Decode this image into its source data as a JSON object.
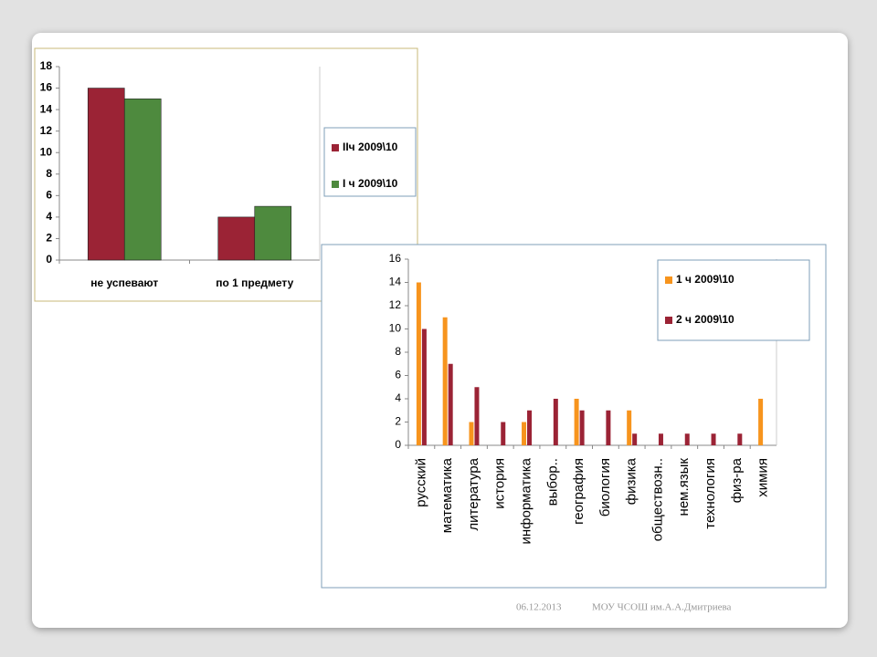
{
  "chart_data": [
    {
      "type": "bar",
      "categories": [
        "не успевают",
        "по 1 предмету"
      ],
      "series": [
        {
          "name": "IIч 2009\\10",
          "color": "#9b2335",
          "values": [
            16,
            4
          ]
        },
        {
          "name": "I ч 2009\\10",
          "color": "#4e8a3e",
          "values": [
            15,
            5
          ]
        }
      ],
      "ylim": [
        0,
        18
      ],
      "yticks": [
        0,
        2,
        4,
        6,
        8,
        10,
        12,
        14,
        16,
        18
      ],
      "grid": false,
      "legend": "right"
    },
    {
      "type": "bar",
      "categories": [
        "русский",
        "математика",
        "литература",
        "история",
        "информатика",
        "выбор..",
        "география",
        "биология",
        "физика",
        "обществозн..",
        "нем.язык",
        "технология",
        "физ-ра",
        "химия"
      ],
      "series": [
        {
          "name": "1 ч 2009\\10",
          "color": "#f7941d",
          "values": [
            14,
            11,
            2,
            0,
            2,
            0,
            4,
            0,
            3,
            0,
            0,
            0,
            0,
            4
          ]
        },
        {
          "name": "2 ч 2009\\10",
          "color": "#9b2335",
          "values": [
            10,
            7,
            5,
            2,
            3,
            4,
            3,
            3,
            1,
            1,
            1,
            1,
            1,
            0
          ]
        }
      ],
      "ylim": [
        0,
        16
      ],
      "yticks": [
        0,
        2,
        4,
        6,
        8,
        10,
        12,
        14,
        16
      ],
      "grid": false,
      "legend": "upper right",
      "rotated_labels": true
    }
  ],
  "footer": {
    "date": "06.12.2013",
    "org": "МОУ ЧСОШ им.А.А.Дмитриева"
  }
}
